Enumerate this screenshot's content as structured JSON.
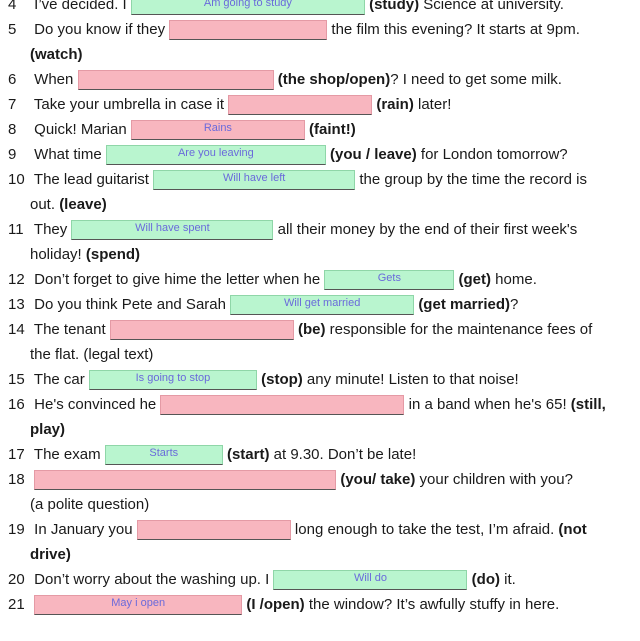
{
  "items": [
    {
      "n": "4",
      "before": "I’ve decided. I",
      "answer": "Am going to study",
      "after_bold": "(study)",
      "after": " Science at university."
    },
    {
      "n": "5",
      "before": "Do you know if they",
      "answer": "",
      "after": " the film this evening? It starts at 9pm.",
      "cont_bold": "(watch)"
    },
    {
      "n": "6",
      "before": "When",
      "answer": "",
      "after_bold": "(the shop/open)",
      "after": "? I need to get some milk."
    },
    {
      "n": "7",
      "before": "Take your umbrella in case it",
      "answer": "",
      "after_bold": "(rain)",
      "after": " later!"
    },
    {
      "n": "8",
      "before": "Quick! Marian",
      "answer": "Rains",
      "after_bold": "(faint!)",
      "after": ""
    },
    {
      "n": "9",
      "before": "What time",
      "answer": "Are you leaving",
      "after_bold": "(you / leave)",
      "after": " for London tomorrow?"
    },
    {
      "n": "10",
      "before": "The lead guitarist",
      "answer": "Will have left",
      "after": " the group by the time the record is",
      "cont": "out. ",
      "cont_bold": "(leave)"
    },
    {
      "n": "11",
      "before": "They",
      "answer": "Will have spent",
      "after": " all their money by the end of their first week's",
      "cont": "holiday! ",
      "cont_bold": "(spend)"
    },
    {
      "n": "12",
      "before": "Don’t forget to give hime the letter when he",
      "answer": "Gets",
      "after_bold": "(get)",
      "after": " home."
    },
    {
      "n": "13",
      "before": "Do you think Pete and Sarah",
      "answer": "Will get married",
      "after_bold": "(get married)",
      "after": "?"
    },
    {
      "n": "14",
      "before": "The tenant",
      "answer": "",
      "after_bold": "(be)",
      "after": " responsible for the maintenance fees of",
      "cont": "the flat. (legal text)"
    },
    {
      "n": "15",
      "before": "The car",
      "answer": "Is going to stop",
      "after_bold": "(stop)",
      "after": " any minute! Listen to that noise!"
    },
    {
      "n": "16",
      "before": "He's convinced he",
      "answer": "",
      "after": " in a band when he's 65! ",
      "after_bold2": "(still,",
      "cont_bold": "play)"
    },
    {
      "n": "17",
      "before": "The exam",
      "answer": "Starts",
      "after_bold": "(start)",
      "after": " at 9.30. Don’t be late!"
    },
    {
      "n": "18",
      "before": "",
      "answer": "",
      "after_bold": "(you/ take)",
      "after": " your children with you?",
      "cont": "(a polite question)"
    },
    {
      "n": "19",
      "before": "In January you",
      "answer": "",
      "after": " long enough to take the test, I’m afraid. ",
      "after_bold2": "(not",
      "cont_bold": "drive)"
    },
    {
      "n": "20",
      "before": "Don’t worry about the washing up. I",
      "answer": "Will do",
      "after_bold": "(do)",
      "after": " it."
    },
    {
      "n": "21",
      "before": "",
      "answer": "May i open",
      "after_bold": "(I /open)",
      "after": " the window? It’s awfully stuffy in here."
    }
  ]
}
